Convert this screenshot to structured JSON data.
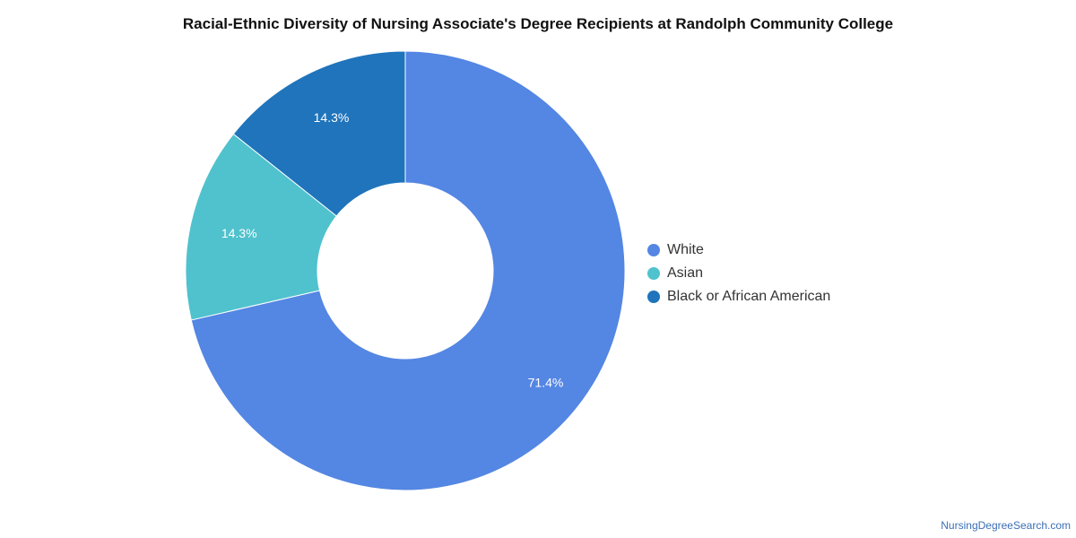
{
  "chart_data": {
    "type": "pie",
    "title": "Racial-Ethnic Diversity of Nursing Associate's Degree Recipients at Randolph Community College",
    "categories": [
      "White",
      "Asian",
      "Black or African American"
    ],
    "values": [
      71.4,
      14.3,
      14.3
    ],
    "labels": [
      "71.4%",
      "14.3%",
      "14.3%"
    ],
    "colors": [
      "#5486e3",
      "#50c2cd",
      "#1f74bb"
    ],
    "legend_position": "right",
    "donut": true
  },
  "credit": "NursingDegreeSearch.com"
}
